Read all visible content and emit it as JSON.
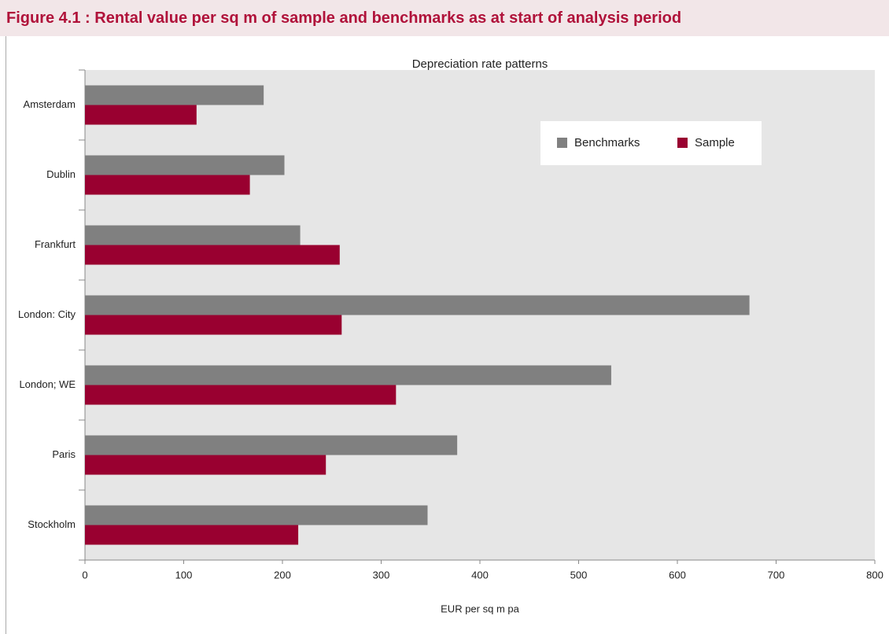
{
  "header": {
    "title": "Figure 4.1 : Rental value per sq m of sample and benchmarks as at start of analysis period"
  },
  "chart_data": {
    "type": "bar",
    "orientation": "horizontal",
    "title": "Depreciation rate patterns",
    "x_label": "EUR per sq m pa",
    "categories": [
      "Amsterdam",
      "Dublin",
      "Frankfurt",
      "London: City",
      "London; WE",
      "Paris",
      "Stockholm"
    ],
    "series": [
      {
        "name": "Benchmarks",
        "color": "#808080",
        "values": [
          181,
          202,
          218,
          673,
          533,
          377,
          347
        ]
      },
      {
        "name": "Sample",
        "color": "#990030",
        "values": [
          113,
          167,
          258,
          260,
          315,
          244,
          216
        ]
      }
    ],
    "xlim": [
      0,
      800
    ],
    "xticks": [
      0,
      100,
      200,
      300,
      400,
      500,
      600,
      700,
      800
    ],
    "legend": "top-right"
  }
}
